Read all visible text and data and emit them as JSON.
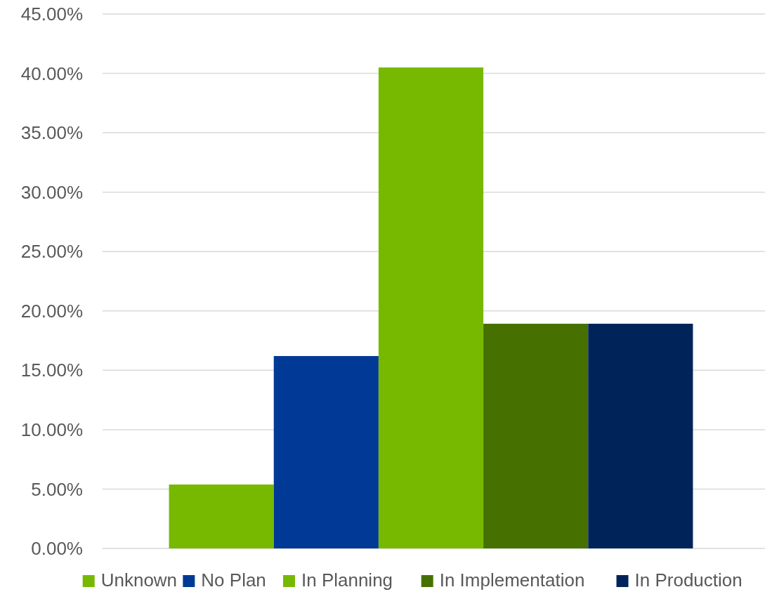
{
  "chart_data": {
    "type": "bar",
    "categories": [
      null
    ],
    "series": [
      {
        "name": "Unknown",
        "color": "#76b900",
        "values": [
          5.38
        ]
      },
      {
        "name": "No Plan",
        "color": "#003a96",
        "values": [
          16.2
        ]
      },
      {
        "name": "In Planning",
        "color": "#76b900",
        "values": [
          40.5
        ]
      },
      {
        "name": "In Implementation",
        "color": "#467000",
        "values": [
          18.92
        ]
      },
      {
        "name": "In Production",
        "color": "#00245a",
        "values": [
          18.92
        ]
      }
    ],
    "ylim": [
      0,
      45
    ],
    "yticks": [
      {
        "value": 0,
        "label": "0.00%"
      },
      {
        "value": 5,
        "label": "5.00%"
      },
      {
        "value": 10,
        "label": "10.00%"
      },
      {
        "value": 15,
        "label": "15.00%"
      },
      {
        "value": 20,
        "label": "20.00%"
      },
      {
        "value": 25,
        "label": "25.00%"
      },
      {
        "value": 30,
        "label": "30.00%"
      },
      {
        "value": 35,
        "label": "35.00%"
      },
      {
        "value": 40,
        "label": "40.00%"
      },
      {
        "value": 45,
        "label": "45.00%"
      }
    ],
    "grid": "y",
    "legend": "bottom"
  }
}
